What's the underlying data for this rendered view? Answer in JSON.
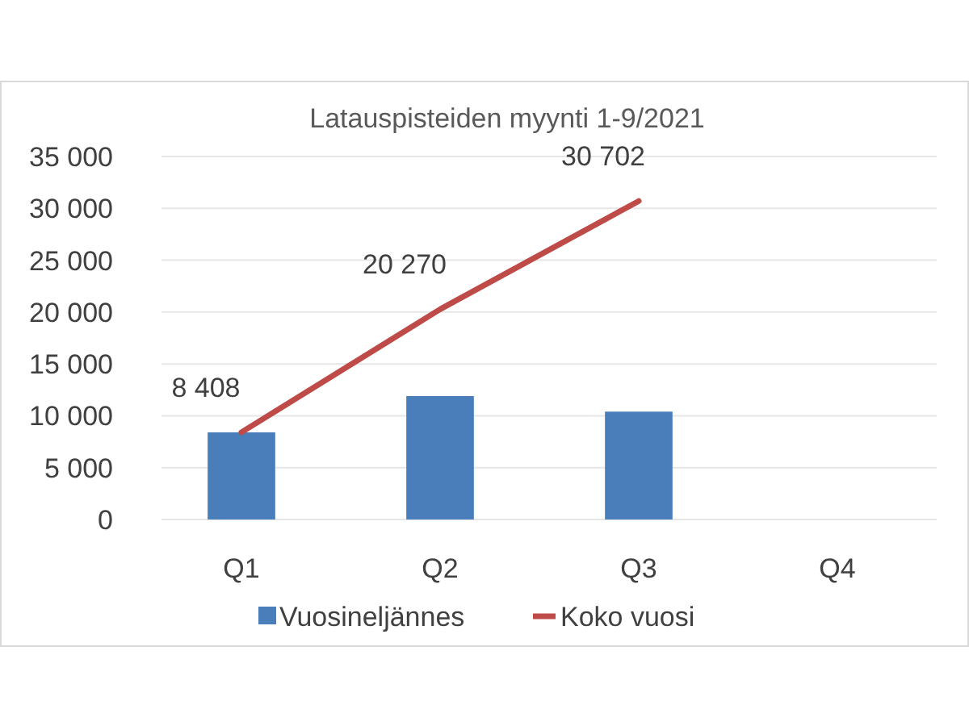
{
  "chart_data": {
    "type": "bar",
    "title": "Latauspisteiden myynti 1-9/2021",
    "categories": [
      "Q1",
      "Q2",
      "Q3",
      "Q4"
    ],
    "series": [
      {
        "name": "Vuosineljännes",
        "color": "#4a7ebb",
        "values": [
          8400,
          11900,
          10400,
          null
        ]
      },
      {
        "name": "Koko vuosi",
        "type": "line",
        "color": "#be4b48",
        "values": [
          8408,
          20270,
          30702,
          null
        ],
        "value_labels": [
          "8 408",
          "20 270",
          "30 702",
          null
        ]
      }
    ],
    "ylim": [
      0,
      35000
    ],
    "yticks": [
      {
        "value": 0,
        "label": "0"
      },
      {
        "value": 5000,
        "label": "5 000"
      },
      {
        "value": 10000,
        "label": "10 000"
      },
      {
        "value": 15000,
        "label": "15 000"
      },
      {
        "value": 20000,
        "label": "20 000"
      },
      {
        "value": 25000,
        "label": "25 000"
      },
      {
        "value": 30000,
        "label": "30 000"
      },
      {
        "value": 35000,
        "label": "35 000"
      }
    ],
    "grid": "y",
    "legend": "bottom",
    "marker": "none"
  }
}
